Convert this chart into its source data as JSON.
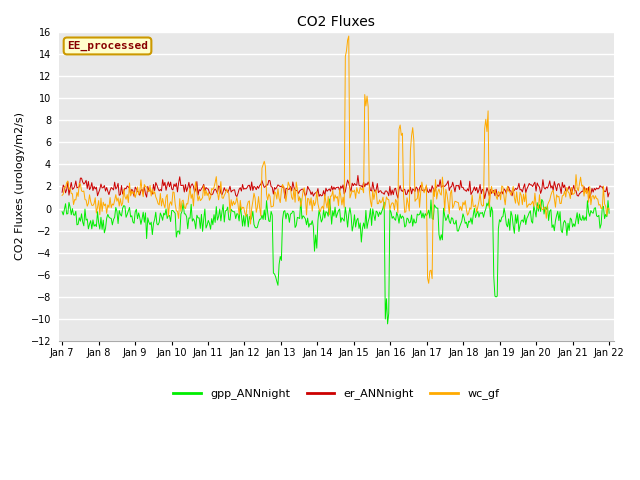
{
  "title": "CO2 Fluxes",
  "ylabel": "CO2 Fluxes (urology/m2/s)",
  "ylim": [
    -12,
    16
  ],
  "x_tick_labels": [
    "Jan 7",
    "Jan 8",
    "Jan 9",
    "Jan 10",
    "Jan 11",
    "Jan 12",
    "Jan 13",
    "Jan 14",
    "Jan 15",
    "Jan 16",
    "Jan 17",
    "Jan 18",
    "Jan 19",
    "Jan 20",
    "Jan 21",
    "Jan 22"
  ],
  "legend_entries": [
    "gpp_ANNnight",
    "er_ANNnight",
    "wc_gf"
  ],
  "legend_colors": [
    "#00ee00",
    "#cc0000",
    "#ffaa00"
  ],
  "label_text": "EE_processed",
  "label_bg": "#ffffcc",
  "label_border": "#cc9900",
  "label_text_color": "#880000",
  "fig_bg": "#ffffff",
  "plot_bg": "#e8e8e8",
  "grid_color": "#d0d0d0",
  "n_points": 480,
  "title_fontsize": 10,
  "axis_label_fontsize": 8,
  "tick_fontsize": 7
}
